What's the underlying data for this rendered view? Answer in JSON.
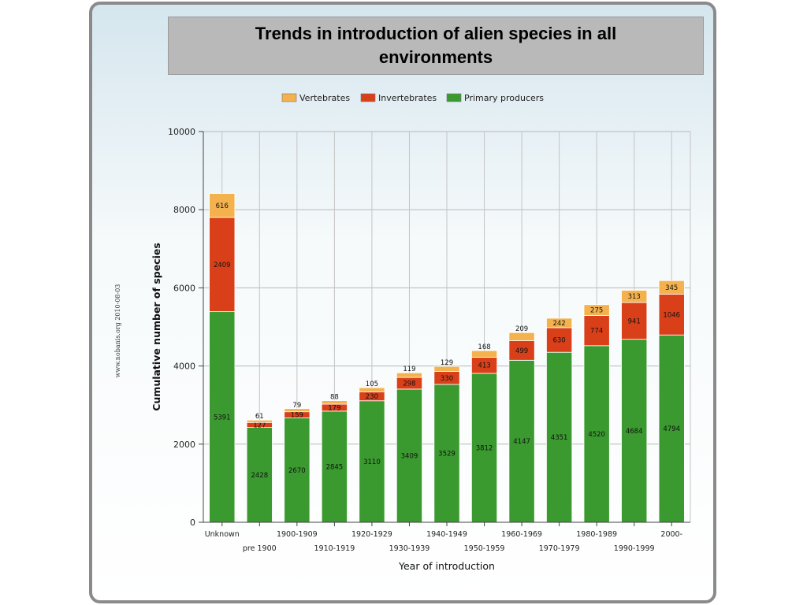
{
  "title": "Trends in introduction of alien species  in all environments",
  "credit": "www.nobanis.org 2010-08-03",
  "chart_data": {
    "type": "bar",
    "stacked": true,
    "xlabel": "Year of introduction",
    "ylabel": "Cumulative number of species",
    "ylim": [
      0,
      10000
    ],
    "yticks": [
      0,
      2000,
      4000,
      6000,
      8000,
      10000
    ],
    "grid": true,
    "legend_position": "top",
    "categories": [
      "Unknown",
      "pre 1900",
      "1900-1909",
      "1910-1919",
      "1920-1929",
      "1930-1939",
      "1940-1949",
      "1950-1959",
      "1960-1969",
      "1970-1979",
      "1980-1989",
      "1990-1999",
      "2000-"
    ],
    "series": [
      {
        "name": "Primary producers",
        "color": "#3a9a2f",
        "values": [
          5391,
          2428,
          2670,
          2845,
          3110,
          3409,
          3529,
          3812,
          4147,
          4351,
          4520,
          4684,
          4794
        ]
      },
      {
        "name": "Invertebrates",
        "color": "#d9401a",
        "values": [
          2409,
          127,
          159,
          179,
          230,
          298,
          330,
          413,
          499,
          630,
          774,
          941,
          1046
        ]
      },
      {
        "name": "Vertebrates",
        "color": "#f4b24e",
        "values": [
          616,
          61,
          79,
          88,
          105,
          119,
          129,
          168,
          209,
          242,
          275,
          313,
          345
        ]
      }
    ],
    "legend_order": [
      "Vertebrates",
      "Invertebrates",
      "Primary producers"
    ]
  }
}
